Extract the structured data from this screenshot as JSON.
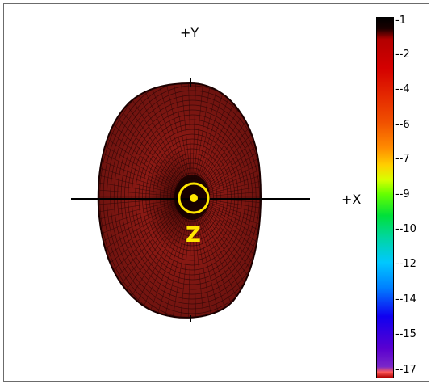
{
  "axes": {
    "y_label": "+Y",
    "x_label": "+X",
    "z_label": "Z"
  },
  "colors": {
    "surface": "#8b1a14",
    "mesh": "#2a0606",
    "z_marker": "#ffe600"
  },
  "colorbar": {
    "tick_labels": [
      "-1",
      "--2",
      "--4",
      "--6",
      "--7",
      "--9",
      "--10",
      "--12",
      "--14",
      "--15",
      "--17"
    ]
  }
}
